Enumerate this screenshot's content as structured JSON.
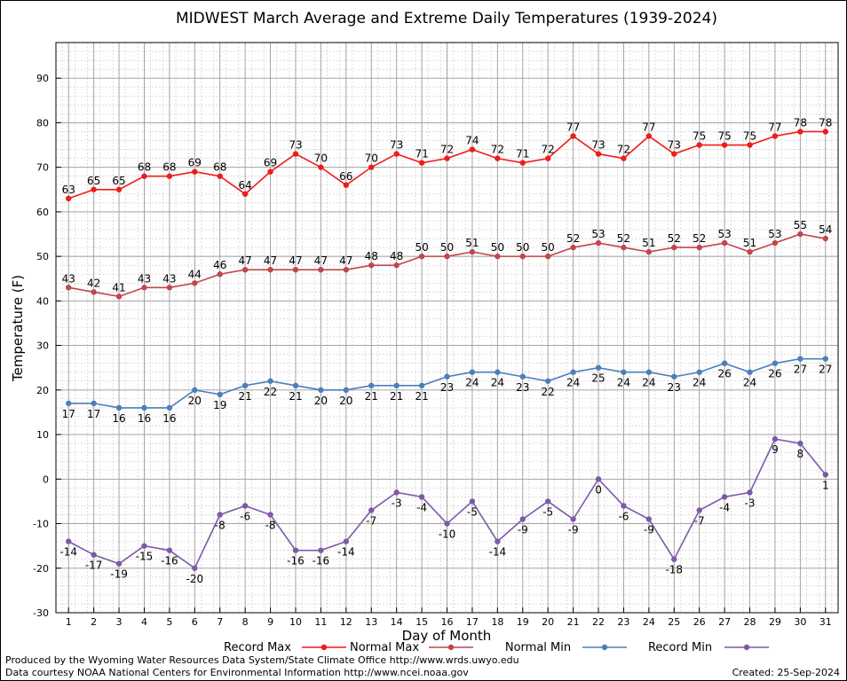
{
  "chart_data": {
    "type": "line",
    "title": "MIDWEST March Average and Extreme Daily Temperatures (1939-2024)",
    "xlabel": "Day of Month",
    "ylabel": "Temperature (F)",
    "ylim": [
      -30,
      98
    ],
    "xlim": [
      0.5,
      31.5
    ],
    "yticks": [
      -30,
      -20,
      -10,
      0,
      10,
      20,
      30,
      40,
      50,
      60,
      70,
      80,
      90
    ],
    "grid": true,
    "legend_position": "bottom",
    "x": [
      1,
      2,
      3,
      4,
      5,
      6,
      7,
      8,
      9,
      10,
      11,
      12,
      13,
      14,
      15,
      16,
      17,
      18,
      19,
      20,
      21,
      22,
      23,
      24,
      25,
      26,
      27,
      28,
      29,
      30,
      31
    ],
    "series": [
      {
        "name": "Record Max",
        "color": "#ee1c1c",
        "label_pos": "above",
        "values": [
          63,
          65,
          65,
          68,
          68,
          69,
          68,
          64,
          69,
          73,
          70,
          66,
          70,
          73,
          71,
          72,
          74,
          72,
          71,
          72,
          77,
          73,
          72,
          77,
          73,
          75,
          75,
          75,
          77,
          78,
          78
        ]
      },
      {
        "name": "Normal Max",
        "color": "#c0474a",
        "label_pos": "above",
        "values": [
          43,
          42,
          41,
          43,
          43,
          44,
          46,
          47,
          47,
          47,
          47,
          47,
          48,
          48,
          50,
          50,
          51,
          50,
          50,
          50,
          52,
          53,
          52,
          51,
          52,
          52,
          53,
          51,
          53,
          55,
          54
        ]
      },
      {
        "name": "Normal Min",
        "color": "#4a7fba",
        "label_pos": "below",
        "values": [
          17,
          17,
          16,
          16,
          16,
          20,
          19,
          21,
          22,
          21,
          20,
          20,
          21,
          21,
          21,
          23,
          24,
          24,
          23,
          22,
          24,
          25,
          24,
          24,
          23,
          24,
          26,
          24,
          26,
          27,
          27
        ]
      },
      {
        "name": "Record Min",
        "color": "#7c5aa6",
        "label_pos": "below",
        "values": [
          -14,
          -17,
          -19,
          -15,
          -16,
          -20,
          -8,
          -6,
          -8,
          -16,
          -16,
          -14,
          -7,
          -3,
          -4,
          -10,
          -5,
          -14,
          -9,
          -5,
          -9,
          0,
          -6,
          -9,
          -18,
          -7,
          -4,
          -3,
          9,
          8,
          1
        ]
      }
    ]
  },
  "footer": {
    "credit_line1": "Produced by the Wyoming Water Resources Data System/State Climate Office http://www.wrds.uwyo.edu",
    "credit_line2": "Data courtesy NOAA National Centers for Environmental Information http://www.ncei.noaa.gov",
    "created": "Created:  25-Sep-2024"
  }
}
